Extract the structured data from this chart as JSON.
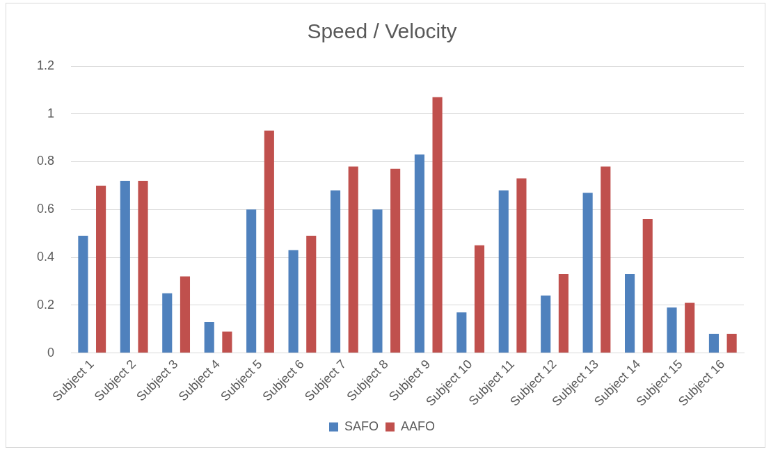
{
  "chart_data": {
    "type": "bar",
    "title": "Speed / Velocity",
    "categories": [
      "Subject 1",
      "Subject 2",
      "Subject 3",
      "Subject 4",
      "Subject 5",
      "Subject 6",
      "Subject 7",
      "Subject 8",
      "Subject 9",
      "Subject 10",
      "Subject 11",
      "Subject 12",
      "Subject 13",
      "Subject 14",
      "Subject 15",
      "Subject 16"
    ],
    "series": [
      {
        "name": "SAFO",
        "color": "#4f81bd",
        "values": [
          0.49,
          0.72,
          0.25,
          0.13,
          0.6,
          0.43,
          0.68,
          0.6,
          0.83,
          0.17,
          0.68,
          0.24,
          0.67,
          0.33,
          0.19,
          0.08
        ]
      },
      {
        "name": "AAFO",
        "color": "#c0504d",
        "values": [
          0.7,
          0.72,
          0.32,
          0.09,
          0.93,
          0.49,
          0.78,
          0.77,
          1.07,
          0.45,
          0.73,
          0.33,
          0.78,
          0.56,
          0.21,
          0.08
        ]
      }
    ],
    "ylim": [
      0,
      1.2
    ],
    "yticks": [
      0,
      0.2,
      0.4,
      0.6,
      0.8,
      1,
      1.2
    ],
    "grid": "y",
    "legend": "bottom"
  }
}
